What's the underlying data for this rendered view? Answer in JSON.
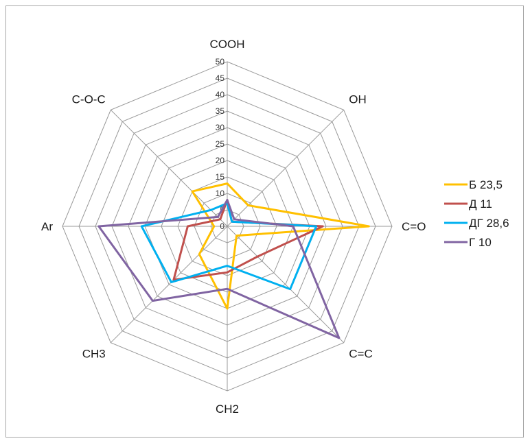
{
  "chart_data": {
    "type": "radar",
    "title": "",
    "axes": [
      "COOH",
      "OH",
      "C=O",
      "C=C",
      "CH2",
      "CH3",
      "Ar",
      "C-O-C"
    ],
    "rlim": [
      0,
      50
    ],
    "ticks": [
      0,
      5,
      10,
      15,
      20,
      25,
      30,
      35,
      40,
      45,
      50
    ],
    "tick_labels": [
      "0",
      "5",
      "10",
      "15",
      "20",
      "25",
      "30",
      "35",
      "40",
      "45",
      "50"
    ],
    "grid": true,
    "legend_position": "right",
    "series": [
      {
        "name": "Б 23,5",
        "color": "#FFC000",
        "values": [
          13,
          9,
          43,
          4,
          25,
          12,
          4,
          15
        ]
      },
      {
        "name": "Д 11",
        "color": "#C0504D",
        "values": [
          8,
          2,
          29,
          13,
          14,
          23,
          12,
          3
        ]
      },
      {
        "name": "ДГ 28,6",
        "color": "#00B0F0",
        "values": [
          7,
          2,
          27,
          27,
          12,
          24,
          26,
          7
        ]
      },
      {
        "name": "Г 10",
        "color": "#8064A2",
        "values": [
          8,
          3,
          20,
          48,
          19,
          32,
          39,
          4
        ]
      }
    ]
  }
}
